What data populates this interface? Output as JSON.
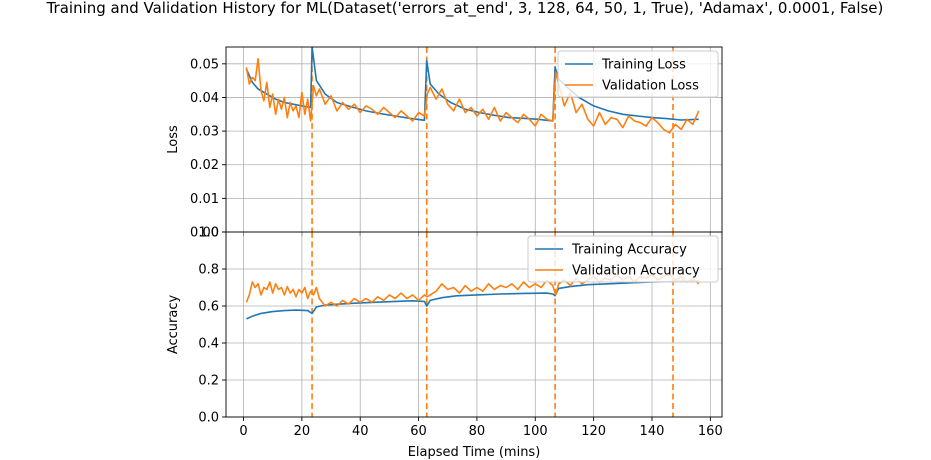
{
  "title": "Training and Validation History for ML(Dataset('errors_at_end', 3, 128, 64, 50, 1, True), 'Adamax', 0.0001, False)",
  "colors": {
    "training": "#1f77b4",
    "validation": "#ff7f0e",
    "grid": "#b0b0b0",
    "axis": "#000000"
  },
  "chart_data": [
    {
      "type": "line",
      "panel": "loss",
      "title": "Training and Validation History for ML(Dataset('errors_at_end', 3, 128, 64, 50, 1, True), 'Adamax', 0.0001, False)",
      "xlabel": "",
      "ylabel": "Loss",
      "xlim": [
        -6,
        164
      ],
      "ylim": [
        0.0,
        0.055
      ],
      "yticks": [
        0.0,
        0.01,
        0.02,
        0.03,
        0.04,
        0.05
      ],
      "ytick_labels": [
        "0.00",
        "0.01",
        "0.02",
        "0.03",
        "0.04",
        "0.05"
      ],
      "xticks": [
        0,
        20,
        40,
        60,
        80,
        100,
        120,
        140,
        160
      ],
      "grid": true,
      "legend": "top-right",
      "vlines": [
        23.5,
        62.8,
        106.8,
        147.2
      ],
      "series": [
        {
          "name": "Training Loss",
          "x": [
            1,
            3,
            5,
            8,
            11,
            14,
            17,
            20,
            23,
            23.5,
            25,
            28,
            32,
            37,
            42,
            47,
            52,
            57,
            62,
            62.8,
            64,
            67,
            71,
            76,
            81,
            86,
            91,
            96,
            101,
            106,
            106.8,
            108,
            111,
            115,
            120,
            125,
            130,
            135,
            140,
            145,
            150,
            156
          ],
          "y": [
            0.0485,
            0.0445,
            0.0425,
            0.041,
            0.0395,
            0.0385,
            0.038,
            0.0375,
            0.037,
            0.055,
            0.045,
            0.041,
            0.0385,
            0.0372,
            0.036,
            0.0352,
            0.0345,
            0.0338,
            0.0332,
            0.051,
            0.044,
            0.041,
            0.0385,
            0.0365,
            0.0355,
            0.0347,
            0.034,
            0.0338,
            0.0335,
            0.033,
            0.049,
            0.0455,
            0.043,
            0.04,
            0.0375,
            0.036,
            0.035,
            0.0345,
            0.034,
            0.0337,
            0.0333,
            0.0335
          ]
        },
        {
          "name": "Validation Loss",
          "x": [
            1,
            2,
            3,
            4,
            5,
            6,
            7,
            8,
            9,
            10,
            11,
            12,
            13,
            14,
            15,
            16,
            17,
            18,
            19,
            20,
            21,
            22,
            23,
            24,
            25,
            26,
            28,
            30,
            32,
            34,
            36,
            38,
            40,
            42,
            44,
            46,
            48,
            50,
            52,
            54,
            56,
            58,
            60,
            62,
            63,
            64,
            66,
            68,
            70,
            72,
            74,
            76,
            78,
            80,
            82,
            84,
            86,
            88,
            90,
            92,
            94,
            96,
            98,
            100,
            102,
            104,
            106,
            107,
            108,
            110,
            112,
            114,
            116,
            118,
            120,
            122,
            124,
            126,
            128,
            130,
            132,
            134,
            136,
            138,
            140,
            142,
            144,
            146,
            148,
            150,
            152,
            154,
            156
          ],
          "y": [
            0.049,
            0.044,
            0.046,
            0.045,
            0.0515,
            0.042,
            0.039,
            0.0445,
            0.037,
            0.041,
            0.035,
            0.0395,
            0.0365,
            0.04,
            0.034,
            0.0385,
            0.036,
            0.0375,
            0.034,
            0.0415,
            0.035,
            0.0395,
            0.033,
            0.0435,
            0.0405,
            0.0425,
            0.038,
            0.0405,
            0.036,
            0.0385,
            0.0365,
            0.038,
            0.0355,
            0.0375,
            0.0365,
            0.035,
            0.037,
            0.0355,
            0.034,
            0.036,
            0.0345,
            0.033,
            0.0355,
            0.0345,
            0.041,
            0.043,
            0.0395,
            0.0425,
            0.038,
            0.036,
            0.0395,
            0.0355,
            0.037,
            0.0345,
            0.0365,
            0.0335,
            0.037,
            0.033,
            0.0355,
            0.034,
            0.0325,
            0.035,
            0.0335,
            0.0315,
            0.035,
            0.0335,
            0.033,
            0.0475,
            0.044,
            0.0375,
            0.0415,
            0.0355,
            0.038,
            0.0335,
            0.0315,
            0.0355,
            0.032,
            0.034,
            0.0335,
            0.031,
            0.0345,
            0.033,
            0.0325,
            0.0315,
            0.034,
            0.0325,
            0.0305,
            0.0295,
            0.032,
            0.0305,
            0.0335,
            0.032,
            0.036
          ]
        }
      ]
    },
    {
      "type": "line",
      "panel": "accuracy",
      "xlabel": "Elapsed Time (mins)",
      "ylabel": "Accuracy",
      "xlim": [
        -6,
        164
      ],
      "ylim": [
        0.0,
        1.0
      ],
      "yticks": [
        0.0,
        0.2,
        0.4,
        0.6,
        0.8,
        1.0
      ],
      "ytick_labels": [
        "0.0",
        "0.2",
        "0.4",
        "0.6",
        "0.8",
        "1.0"
      ],
      "xticks": [
        0,
        20,
        40,
        60,
        80,
        100,
        120,
        140,
        160
      ],
      "grid": true,
      "legend": "top-right",
      "vlines": [
        23.5,
        62.8,
        106.8,
        147.2
      ],
      "series": [
        {
          "name": "Training Accuracy",
          "x": [
            1,
            3,
            6,
            10,
            14,
            18,
            22,
            23.5,
            25,
            28,
            33,
            38,
            45,
            52,
            58,
            62,
            62.8,
            64,
            68,
            73,
            80,
            88,
            96,
            104,
            106,
            106.8,
            108,
            112,
            118,
            125,
            132,
            140,
            148,
            156
          ],
          "y": [
            0.53,
            0.545,
            0.56,
            0.57,
            0.575,
            0.578,
            0.575,
            0.56,
            0.595,
            0.605,
            0.61,
            0.615,
            0.62,
            0.625,
            0.628,
            0.625,
            0.6,
            0.63,
            0.645,
            0.655,
            0.66,
            0.665,
            0.668,
            0.67,
            0.665,
            0.655,
            0.695,
            0.705,
            0.715,
            0.72,
            0.725,
            0.73,
            0.733,
            0.735
          ]
        },
        {
          "name": "Validation Accuracy",
          "x": [
            1,
            2,
            3,
            4,
            5,
            6,
            7,
            8,
            9,
            10,
            11,
            12,
            13,
            14,
            15,
            16,
            17,
            18,
            19,
            20,
            21,
            22,
            23,
            24,
            25,
            26,
            28,
            30,
            32,
            34,
            36,
            38,
            40,
            42,
            44,
            46,
            48,
            50,
            52,
            54,
            56,
            58,
            60,
            62,
            63,
            64,
            66,
            68,
            70,
            72,
            74,
            76,
            78,
            80,
            82,
            84,
            86,
            88,
            90,
            92,
            94,
            96,
            98,
            100,
            102,
            104,
            106,
            107,
            108,
            110,
            112,
            114,
            116,
            118,
            120,
            122,
            124,
            126,
            128,
            130,
            132,
            134,
            136,
            138,
            140,
            142,
            144,
            146,
            148,
            150,
            152,
            154,
            156
          ],
          "y": [
            0.62,
            0.66,
            0.73,
            0.7,
            0.72,
            0.66,
            0.7,
            0.69,
            0.73,
            0.67,
            0.72,
            0.69,
            0.7,
            0.66,
            0.705,
            0.67,
            0.69,
            0.65,
            0.69,
            0.67,
            0.7,
            0.64,
            0.68,
            0.66,
            0.7,
            0.64,
            0.6,
            0.62,
            0.6,
            0.63,
            0.61,
            0.64,
            0.62,
            0.64,
            0.62,
            0.65,
            0.63,
            0.66,
            0.64,
            0.67,
            0.64,
            0.66,
            0.63,
            0.66,
            0.65,
            0.66,
            0.68,
            0.72,
            0.69,
            0.7,
            0.67,
            0.71,
            0.68,
            0.7,
            0.68,
            0.72,
            0.69,
            0.71,
            0.7,
            0.72,
            0.69,
            0.73,
            0.7,
            0.72,
            0.7,
            0.74,
            0.71,
            0.66,
            0.72,
            0.74,
            0.71,
            0.75,
            0.72,
            0.74,
            0.76,
            0.73,
            0.75,
            0.74,
            0.77,
            0.74,
            0.76,
            0.73,
            0.76,
            0.75,
            0.77,
            0.74,
            0.76,
            0.77,
            0.74,
            0.76,
            0.73,
            0.75,
            0.72
          ]
        }
      ]
    }
  ]
}
